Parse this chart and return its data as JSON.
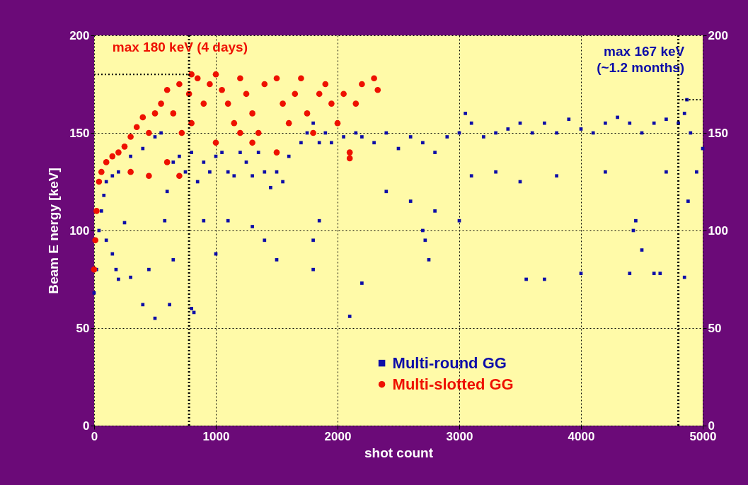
{
  "chart_data": {
    "type": "scatter",
    "xlabel": "shot count",
    "ylabel": "Beam E nergy [keV]",
    "xlim": [
      0,
      5000
    ],
    "xticks": [
      0,
      1000,
      2000,
      3000,
      4000,
      5000
    ],
    "ylim": [
      0,
      200
    ],
    "yticks": [
      0,
      50,
      100,
      150,
      200
    ],
    "y2lim": [
      0,
      200
    ],
    "y2ticks": [
      0,
      50,
      100,
      150,
      200
    ],
    "grid": true,
    "legend": "bottom",
    "annotations": [
      "max 180 keV (4 days)",
      "max 167 keV\n(~1.2 months)"
    ],
    "ref_lines": [
      {
        "axis": "x",
        "value": 780,
        "color": "#000000",
        "line_style": "dotted"
      },
      {
        "axis": "x",
        "value": 4800,
        "color": "#000000",
        "line_style": "dotted"
      }
    ],
    "series": [
      {
        "name": "Multi-round GG",
        "marker": "square",
        "color": "#0c0ca8",
        "x": [
          0,
          20,
          40,
          60,
          80,
          100,
          150,
          200,
          300,
          400,
          500,
          550,
          580,
          600,
          650,
          700,
          750,
          800,
          850,
          900,
          950,
          1000,
          1050,
          1100,
          1150,
          1200,
          1250,
          1300,
          1350,
          1400,
          1450,
          1500,
          1550,
          1600,
          1700,
          1750,
          1800,
          1850,
          1900,
          1950,
          2050,
          2150,
          2200,
          2300,
          2400,
          2500,
          2600,
          2700,
          2800,
          2900,
          3000,
          3050,
          3100,
          3200,
          3300,
          3400,
          3500,
          3600,
          3700,
          3800,
          3900,
          4000,
          4100,
          4200,
          4300,
          4400,
          4500,
          4600,
          4700,
          4800,
          4850,
          4870,
          4900,
          5000,
          100,
          150,
          180,
          200,
          250,
          300,
          400,
          500,
          450,
          650,
          620,
          800,
          820,
          900,
          1000,
          1100,
          1300,
          1400,
          1500,
          1800,
          1800,
          1850,
          2100,
          2200,
          2400,
          2600,
          2700,
          2720,
          2750,
          2800,
          3000,
          3100,
          3300,
          3500,
          3550,
          3700,
          3800,
          4000,
          4200,
          4400,
          4430,
          4450,
          4500,
          4600,
          4650,
          4850,
          4880,
          4950,
          4700
        ],
        "values": [
          68,
          80,
          100,
          110,
          118,
          125,
          128,
          130,
          138,
          142,
          148,
          150,
          105,
          120,
          135,
          138,
          130,
          140,
          125,
          135,
          130,
          138,
          140,
          130,
          128,
          140,
          135,
          128,
          140,
          130,
          122,
          130,
          125,
          138,
          145,
          150,
          155,
          145,
          150,
          145,
          148,
          150,
          148,
          145,
          150,
          142,
          148,
          145,
          140,
          148,
          150,
          160,
          155,
          148,
          150,
          152,
          155,
          150,
          155,
          150,
          157,
          152,
          150,
          155,
          158,
          155,
          150,
          155,
          157,
          155,
          160,
          167,
          150,
          142,
          95,
          88,
          80,
          75,
          104,
          76,
          62,
          55,
          80,
          85,
          62,
          60,
          58,
          105,
          88,
          105,
          102,
          95,
          85,
          80,
          95,
          105,
          56,
          73,
          120,
          115,
          100,
          95,
          85,
          110,
          105,
          128,
          130,
          125,
          75,
          75,
          128,
          78,
          130,
          78,
          100,
          105,
          90,
          78,
          78,
          76,
          115,
          130,
          130
        ]
      },
      {
        "name": "Multi-slotted GG",
        "marker": "circle",
        "color": "#ee1100",
        "x": [
          0,
          10,
          20,
          40,
          60,
          100,
          150,
          200,
          250,
          300,
          350,
          400,
          450,
          500,
          550,
          600,
          650,
          700,
          720,
          780,
          800,
          850,
          900,
          950,
          1000,
          1050,
          1100,
          1150,
          1200,
          1250,
          1300,
          1350,
          1400,
          1500,
          1550,
          1600,
          1650,
          1700,
          1750,
          1800,
          1850,
          1900,
          1950,
          2000,
          2050,
          2100,
          2150,
          2200,
          2300,
          2330,
          300,
          450,
          600,
          700,
          1000,
          1300,
          1500,
          2100,
          1200,
          800
        ],
        "values": [
          80,
          95,
          110,
          125,
          130,
          135,
          138,
          140,
          143,
          148,
          153,
          158,
          150,
          160,
          165,
          172,
          160,
          175,
          150,
          170,
          180,
          178,
          165,
          175,
          180,
          172,
          165,
          155,
          178,
          170,
          160,
          150,
          175,
          178,
          165,
          155,
          170,
          178,
          160,
          150,
          170,
          175,
          165,
          155,
          170,
          140,
          165,
          175,
          178,
          172,
          130,
          128,
          135,
          128,
          145,
          145,
          140,
          137,
          150,
          155
        ]
      },
      {
        "type": "line",
        "marker": "none",
        "line_style": "dotted",
        "color": "#000000",
        "x": [
          0,
          780
        ],
        "values": [
          180,
          180
        ]
      },
      {
        "type": "line",
        "marker": "none",
        "line_style": "dotted",
        "color": "#000000",
        "x": [
          4800,
          5000
        ],
        "values": [
          167,
          167
        ]
      }
    ]
  }
}
